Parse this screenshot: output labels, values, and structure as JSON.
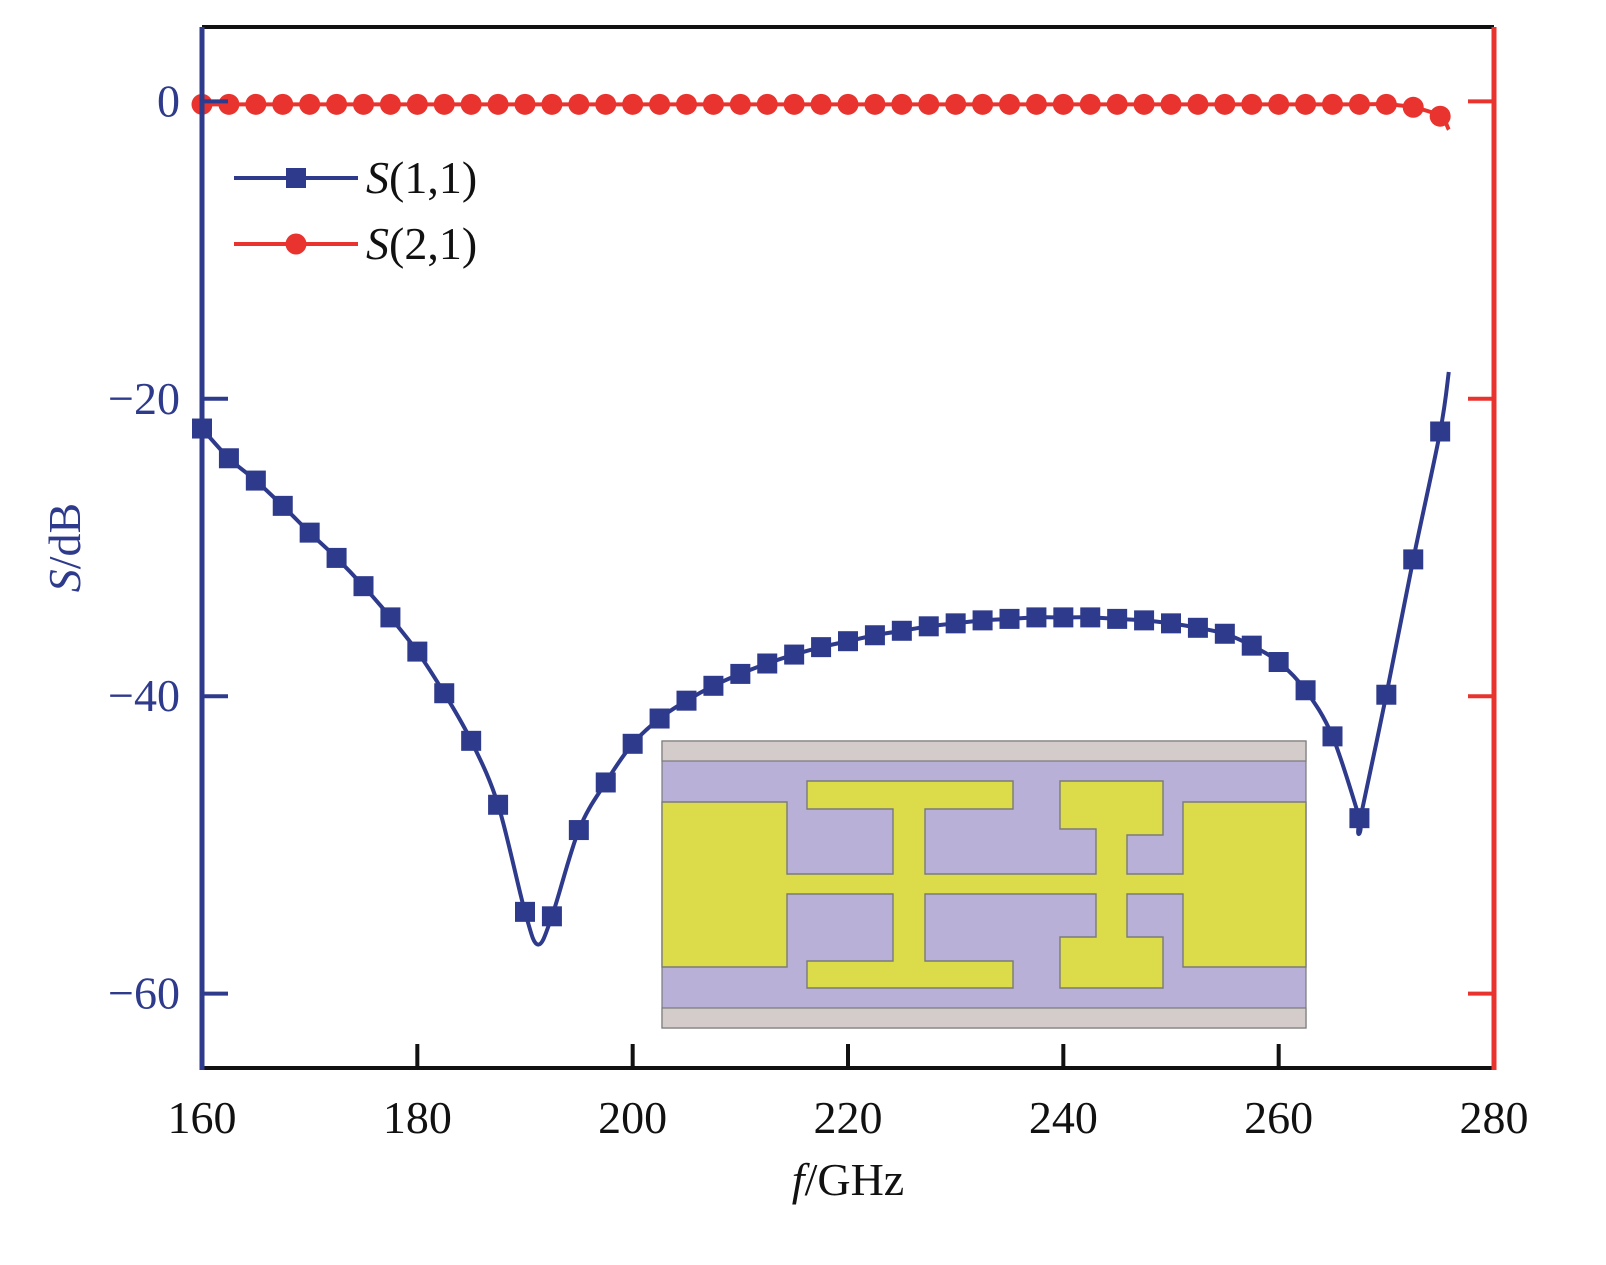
{
  "chart_data": {
    "type": "line",
    "xlabel_italic": "f",
    "xlabel_rest": "/GHz",
    "ylabel_italic": "S",
    "ylabel_rest": "/dB",
    "xlim": [
      160,
      280
    ],
    "ylim": [
      -65,
      5
    ],
    "x_ticks": [
      160,
      180,
      200,
      220,
      240,
      260,
      280
    ],
    "y_ticks": [
      0,
      -20,
      -40,
      -60
    ],
    "x_tick_labels": [
      "160",
      "180",
      "200",
      "220",
      "240",
      "260",
      "280"
    ],
    "y_tick_labels": [
      "0",
      "−20",
      "−40",
      "−60"
    ],
    "legend_position": "top-left",
    "colors": {
      "s11": "#2e3a8c",
      "s21": "#e8332e",
      "frame": "#111111"
    },
    "series": [
      {
        "key": "s11",
        "name_italic": "S",
        "name_rest": "(1,1)",
        "marker": "square",
        "x": [
          160,
          162.5,
          165,
          167.5,
          170,
          172.5,
          175,
          177.5,
          180,
          182.5,
          185,
          187.5,
          190,
          192.5,
          195,
          197.5,
          200,
          202.5,
          205,
          207.5,
          210,
          212.5,
          215,
          217.5,
          220,
          222.5,
          225,
          227.5,
          230,
          232.5,
          235,
          237.5,
          240,
          242.5,
          245,
          247.5,
          250,
          252.5,
          255,
          257.5,
          260,
          262.5,
          265,
          267.5,
          270,
          272.5,
          275
        ],
        "y": [
          -22,
          -24,
          -25.5,
          -27.2,
          -29,
          -30.7,
          -32.6,
          -34.7,
          -37,
          -39.8,
          -43,
          -47.3,
          -54.5,
          -54.8,
          -49,
          -45.8,
          -43.2,
          -41.5,
          -40.3,
          -39.3,
          -38.5,
          -37.8,
          -37.2,
          -36.7,
          -36.3,
          -35.9,
          -35.6,
          -35.3,
          -35.1,
          -34.9,
          -34.8,
          -34.7,
          -34.7,
          -34.7,
          -34.8,
          -34.9,
          -35.1,
          -35.4,
          -35.8,
          -36.6,
          -37.7,
          -39.6,
          -42.7,
          -48.2,
          -39.9,
          -30.8,
          -22.2
        ],
        "curve_extremes": [
          {
            "x": 191.2,
            "y": -56.7
          },
          {
            "x": 267.5,
            "y": -48.5
          },
          {
            "x": 275.8,
            "y": -18.2
          }
        ]
      },
      {
        "key": "s21",
        "name_italic": "S",
        "name_rest": "(2,1)",
        "marker": "circle",
        "x": [
          160,
          162.5,
          165,
          167.5,
          170,
          172.5,
          175,
          177.5,
          180,
          182.5,
          185,
          187.5,
          190,
          192.5,
          195,
          197.5,
          200,
          202.5,
          205,
          207.5,
          210,
          212.5,
          215,
          217.5,
          220,
          222.5,
          225,
          227.5,
          230,
          232.5,
          235,
          237.5,
          240,
          242.5,
          245,
          247.5,
          250,
          252.5,
          255,
          257.5,
          260,
          262.5,
          265,
          267.5,
          270,
          272.5,
          275
        ],
        "y": [
          -0.2,
          -0.2,
          -0.2,
          -0.2,
          -0.2,
          -0.2,
          -0.2,
          -0.2,
          -0.2,
          -0.2,
          -0.2,
          -0.2,
          -0.2,
          -0.2,
          -0.2,
          -0.2,
          -0.2,
          -0.2,
          -0.2,
          -0.2,
          -0.2,
          -0.2,
          -0.2,
          -0.2,
          -0.2,
          -0.2,
          -0.2,
          -0.2,
          -0.2,
          -0.2,
          -0.2,
          -0.2,
          -0.2,
          -0.2,
          -0.2,
          -0.2,
          -0.2,
          -0.2,
          -0.2,
          -0.2,
          -0.2,
          -0.2,
          -0.2,
          -0.2,
          -0.2,
          -0.4,
          -1.0
        ],
        "curve_end": {
          "x": 275.8,
          "y": -1.9
        }
      }
    ]
  },
  "inset": {
    "description_name": "structure-layout",
    "colors": {
      "substrate": "#b8b0d6",
      "conductor": "#dcdc4a",
      "ground": "#d4ccca",
      "edge": "#7a7a7a"
    }
  }
}
